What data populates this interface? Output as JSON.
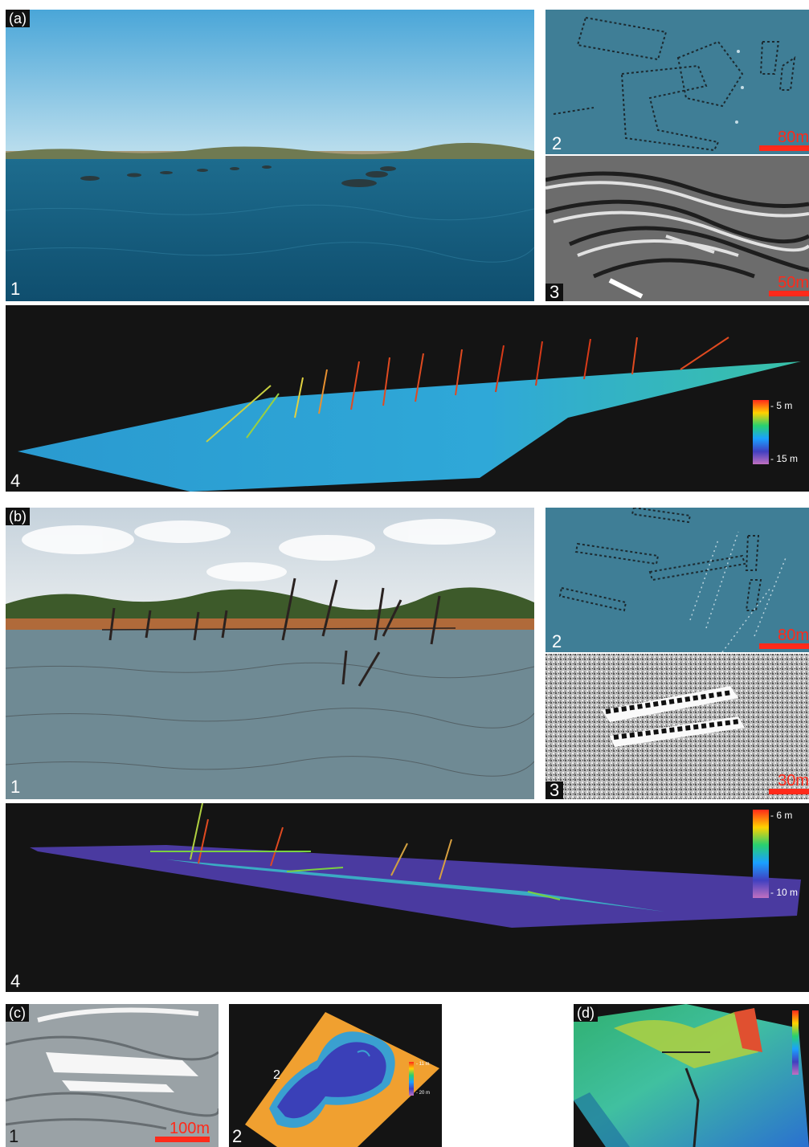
{
  "panels": {
    "a": {
      "label": "(a)",
      "photo_num": "1",
      "sonar_plan_num": "2",
      "sonar_plan_scale": "80m",
      "sidescan_num": "3",
      "sidescan_scale": "50m",
      "cloud_num": "4",
      "cloud_depth_top": "- 5 m",
      "cloud_depth_bottom": "- 15 m"
    },
    "b": {
      "label": "(b)",
      "photo_num": "1",
      "sonar_plan_num": "2",
      "sonar_plan_scale": "80m",
      "sidescan_num": "3",
      "sidescan_scale": "30m",
      "cloud_num": "4",
      "cloud_depth_top": "- 6 m",
      "cloud_depth_bottom": "- 10 m"
    },
    "c": {
      "label": "(c)",
      "sidescan_num": "1",
      "sidescan_scale": "100m",
      "dem_num": "2",
      "dem_inline_num": "2",
      "dem_depth_top": "- 11 m",
      "dem_depth_bottom": "- 20 m"
    },
    "d": {
      "label": "(d)"
    }
  },
  "colors": {
    "scale_bar": "#ff2a1a",
    "background": "#ffffff",
    "panel_dark": "#141414"
  }
}
